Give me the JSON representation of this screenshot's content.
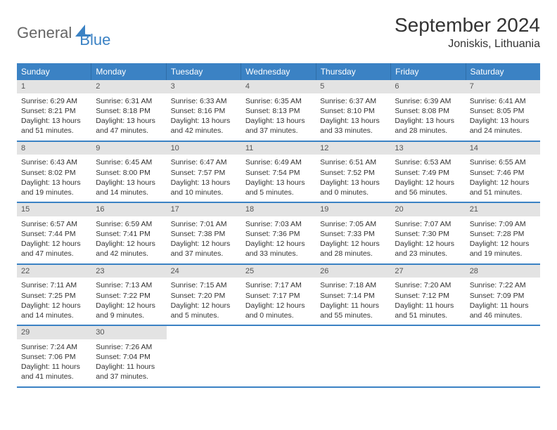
{
  "logo": {
    "general": "General",
    "blue": "Blue"
  },
  "title": "September 2024",
  "location": "Joniskis, Lithuania",
  "colors": {
    "header_bg": "#3b82c4",
    "header_text": "#ffffff",
    "daynum_bg": "#e3e3e3",
    "border": "#3b82c4"
  },
  "day_names": [
    "Sunday",
    "Monday",
    "Tuesday",
    "Wednesday",
    "Thursday",
    "Friday",
    "Saturday"
  ],
  "weeks": [
    [
      {
        "n": "1",
        "sunrise": "6:29 AM",
        "sunset": "8:21 PM",
        "daylight": "13 hours and 51 minutes."
      },
      {
        "n": "2",
        "sunrise": "6:31 AM",
        "sunset": "8:18 PM",
        "daylight": "13 hours and 47 minutes."
      },
      {
        "n": "3",
        "sunrise": "6:33 AM",
        "sunset": "8:16 PM",
        "daylight": "13 hours and 42 minutes."
      },
      {
        "n": "4",
        "sunrise": "6:35 AM",
        "sunset": "8:13 PM",
        "daylight": "13 hours and 37 minutes."
      },
      {
        "n": "5",
        "sunrise": "6:37 AM",
        "sunset": "8:10 PM",
        "daylight": "13 hours and 33 minutes."
      },
      {
        "n": "6",
        "sunrise": "6:39 AM",
        "sunset": "8:08 PM",
        "daylight": "13 hours and 28 minutes."
      },
      {
        "n": "7",
        "sunrise": "6:41 AM",
        "sunset": "8:05 PM",
        "daylight": "13 hours and 24 minutes."
      }
    ],
    [
      {
        "n": "8",
        "sunrise": "6:43 AM",
        "sunset": "8:02 PM",
        "daylight": "13 hours and 19 minutes."
      },
      {
        "n": "9",
        "sunrise": "6:45 AM",
        "sunset": "8:00 PM",
        "daylight": "13 hours and 14 minutes."
      },
      {
        "n": "10",
        "sunrise": "6:47 AM",
        "sunset": "7:57 PM",
        "daylight": "13 hours and 10 minutes."
      },
      {
        "n": "11",
        "sunrise": "6:49 AM",
        "sunset": "7:54 PM",
        "daylight": "13 hours and 5 minutes."
      },
      {
        "n": "12",
        "sunrise": "6:51 AM",
        "sunset": "7:52 PM",
        "daylight": "13 hours and 0 minutes."
      },
      {
        "n": "13",
        "sunrise": "6:53 AM",
        "sunset": "7:49 PM",
        "daylight": "12 hours and 56 minutes."
      },
      {
        "n": "14",
        "sunrise": "6:55 AM",
        "sunset": "7:46 PM",
        "daylight": "12 hours and 51 minutes."
      }
    ],
    [
      {
        "n": "15",
        "sunrise": "6:57 AM",
        "sunset": "7:44 PM",
        "daylight": "12 hours and 47 minutes."
      },
      {
        "n": "16",
        "sunrise": "6:59 AM",
        "sunset": "7:41 PM",
        "daylight": "12 hours and 42 minutes."
      },
      {
        "n": "17",
        "sunrise": "7:01 AM",
        "sunset": "7:38 PM",
        "daylight": "12 hours and 37 minutes."
      },
      {
        "n": "18",
        "sunrise": "7:03 AM",
        "sunset": "7:36 PM",
        "daylight": "12 hours and 33 minutes."
      },
      {
        "n": "19",
        "sunrise": "7:05 AM",
        "sunset": "7:33 PM",
        "daylight": "12 hours and 28 minutes."
      },
      {
        "n": "20",
        "sunrise": "7:07 AM",
        "sunset": "7:30 PM",
        "daylight": "12 hours and 23 minutes."
      },
      {
        "n": "21",
        "sunrise": "7:09 AM",
        "sunset": "7:28 PM",
        "daylight": "12 hours and 19 minutes."
      }
    ],
    [
      {
        "n": "22",
        "sunrise": "7:11 AM",
        "sunset": "7:25 PM",
        "daylight": "12 hours and 14 minutes."
      },
      {
        "n": "23",
        "sunrise": "7:13 AM",
        "sunset": "7:22 PM",
        "daylight": "12 hours and 9 minutes."
      },
      {
        "n": "24",
        "sunrise": "7:15 AM",
        "sunset": "7:20 PM",
        "daylight": "12 hours and 5 minutes."
      },
      {
        "n": "25",
        "sunrise": "7:17 AM",
        "sunset": "7:17 PM",
        "daylight": "12 hours and 0 minutes."
      },
      {
        "n": "26",
        "sunrise": "7:18 AM",
        "sunset": "7:14 PM",
        "daylight": "11 hours and 55 minutes."
      },
      {
        "n": "27",
        "sunrise": "7:20 AM",
        "sunset": "7:12 PM",
        "daylight": "11 hours and 51 minutes."
      },
      {
        "n": "28",
        "sunrise": "7:22 AM",
        "sunset": "7:09 PM",
        "daylight": "11 hours and 46 minutes."
      }
    ],
    [
      {
        "n": "29",
        "sunrise": "7:24 AM",
        "sunset": "7:06 PM",
        "daylight": "11 hours and 41 minutes."
      },
      {
        "n": "30",
        "sunrise": "7:26 AM",
        "sunset": "7:04 PM",
        "daylight": "11 hours and 37 minutes."
      },
      null,
      null,
      null,
      null,
      null
    ]
  ],
  "labels": {
    "sunrise": "Sunrise: ",
    "sunset": "Sunset: ",
    "daylight": "Daylight: "
  }
}
